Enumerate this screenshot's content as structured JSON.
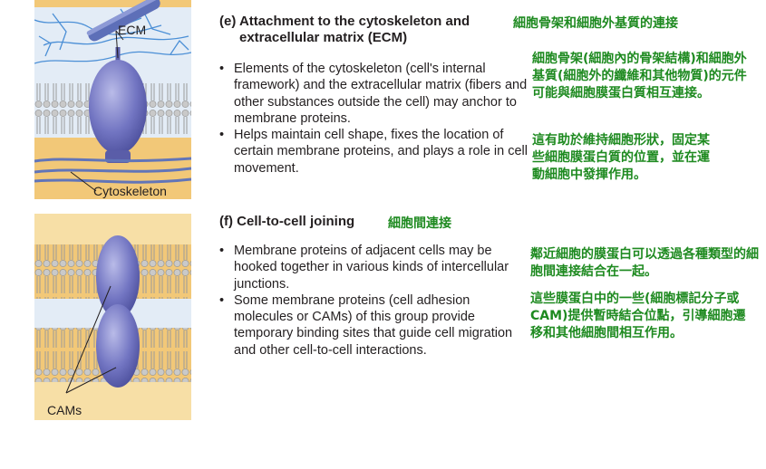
{
  "section_e": {
    "title_line1": "(e) Attachment to the cytoskeleton and",
    "title_line2": "extracellular matrix (ECM)",
    "title_zh": "細胞骨架和細胞外基質的連接",
    "bullets": [
      "Elements of the cytoskeleton (cell's internal framework) and the extracellular matrix (fibers and other substances outside the cell) may anchor to membrane proteins.",
      "Helps maintain cell shape, fixes the location of certain membrane proteins, and plays a role in cell movement."
    ],
    "zh_paragraphs": [
      "細胞骨架(細胞內的骨架結構)和細胞外基質(細胞外的纖維和其他物質)的元件可能與細胞膜蛋白質相互連接。",
      "這有助於維持細胞形狀，固定某些細胞膜蛋白質的位置，並在運動細胞中發揮作用。"
    ],
    "figure_labels": {
      "ecm": "ECM",
      "cytoskeleton": "Cytoskeleton"
    }
  },
  "section_f": {
    "title": "(f) Cell-to-cell joining",
    "title_zh": "細胞間連接",
    "bullets": [
      "Membrane proteins of adjacent cells may be hooked together in various kinds of intercellular junctions.",
      "Some membrane proteins (cell adhesion molecules or CAMs) of this group provide temporary binding sites that guide cell migration and other cell-to-cell interactions."
    ],
    "zh_paragraphs": [
      "鄰近細胞的膜蛋白可以透過各種類型的細胞間連接結合在一起。",
      "這些膜蛋白中的一些(細胞標記分子或CAM)提供暫時結合位點，引導細胞遷移和其他細胞間相互作用。"
    ],
    "figure_labels": {
      "cams": "CAMs"
    }
  },
  "colors": {
    "green_text": "#1e8a20",
    "ecm_fiber": "#4b8fd6",
    "protein": "#6f72c0",
    "membrane_bg": "#e6eef7",
    "cytoplasm": "#f2c878"
  }
}
